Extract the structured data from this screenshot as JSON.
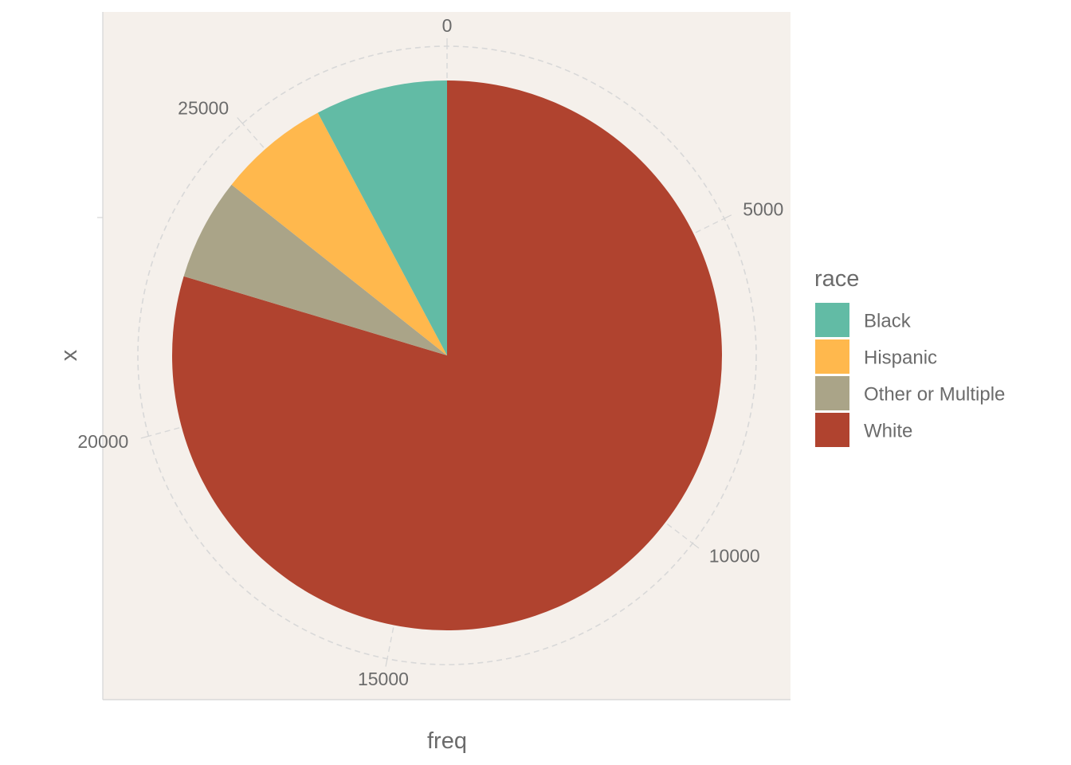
{
  "chart_data": {
    "type": "pie",
    "coord": "polar",
    "start_angle_deg": 0,
    "direction": "clockwise",
    "categories": [
      "White",
      "Other or Multiple",
      "Hispanic",
      "Black"
    ],
    "values": [
      22500,
      1700,
      1850,
      2200
    ],
    "colors": {
      "Black": "#62bba5",
      "Hispanic": "#ffb84d",
      "Other or Multiple": "#aaa488",
      "White": "#b0432f"
    },
    "theta_axis": {
      "ticks": [
        0,
        5000,
        10000,
        15000,
        20000,
        25000
      ],
      "tick_labels": [
        "0",
        "5000",
        "10000",
        "15000",
        "20000",
        "25000"
      ],
      "range": [
        0,
        28250
      ]
    },
    "xlabel": "freq",
    "ylabel": "x",
    "grid": "dashed",
    "panel_background": "#f5f0eb",
    "legend": {
      "title": "race",
      "placement": "right",
      "entries": [
        "Black",
        "Hispanic",
        "Other or Multiple",
        "White"
      ]
    }
  }
}
